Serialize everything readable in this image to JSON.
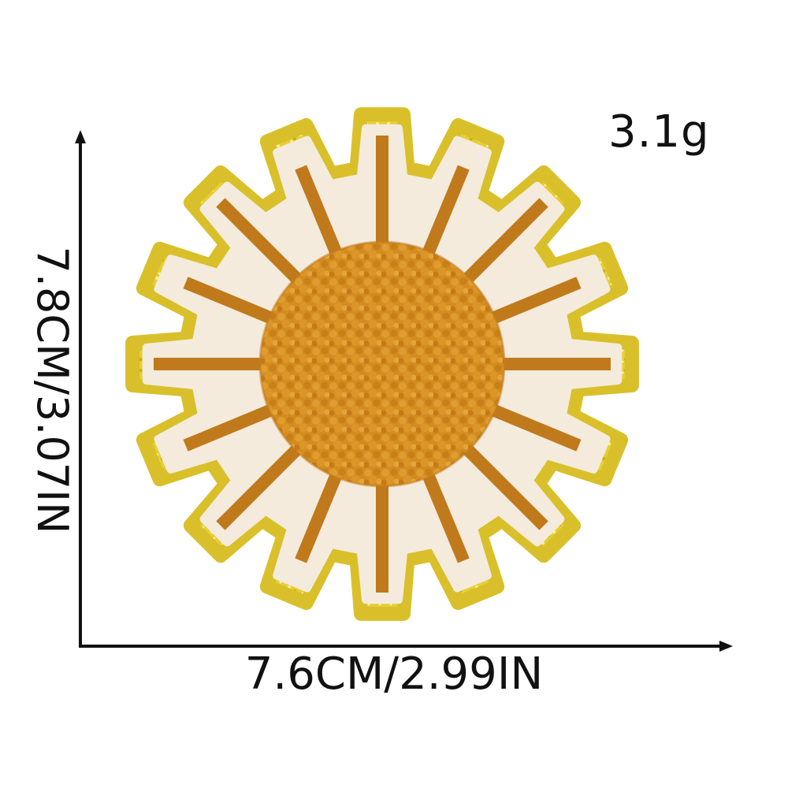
{
  "product": {
    "weight": "3.1g",
    "width": "7.6CM/2.99IN",
    "height": "7.8CM/3.07IN"
  },
  "colors": {
    "glitter_border": "#e9d23c",
    "glitter_highlight": "#f7ec8a",
    "felt": "#f4ebdd",
    "ray_stitch": "#c07a1c",
    "chenille_center": "#d58f22",
    "axis": "#111111"
  },
  "icons": {
    "patch": "sun-patch-image",
    "axis_arrows": "arrow-up-icon, arrow-right-icon"
  }
}
